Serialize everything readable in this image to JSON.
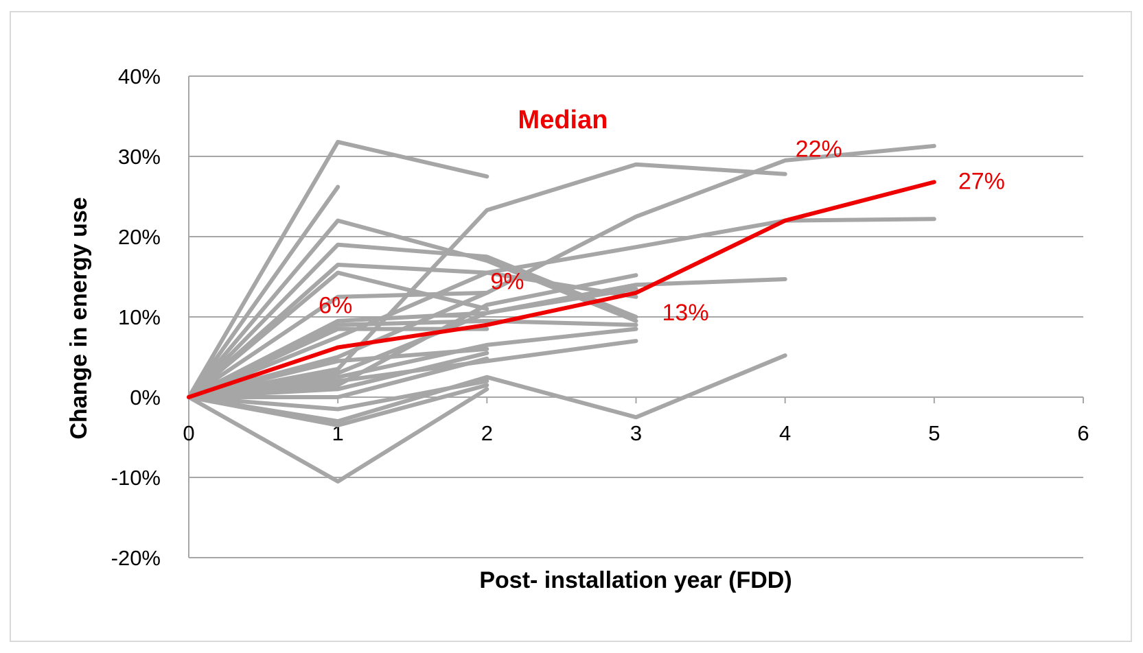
{
  "chart_data": {
    "type": "line",
    "title": "",
    "xlabel": "Post- installation year (FDD)",
    "ylabel": "Change in energy use",
    "xlim": [
      0,
      6
    ],
    "ylim": [
      -20,
      40
    ],
    "x_ticks": [
      "0",
      "1",
      "2",
      "3",
      "4",
      "5",
      "6"
    ],
    "y_ticks": [
      "40%",
      "30%",
      "20%",
      "10%",
      "0%",
      "-10%",
      "-20%"
    ],
    "grid": true,
    "colors": {
      "median": "#ee0000",
      "buildings": "#a6a6a6",
      "grid": "#a6a6a6",
      "annotation": "#e60000"
    },
    "median_legend": "Median",
    "median_series": {
      "name": "Median",
      "x": [
        0,
        1,
        2,
        3,
        4,
        5
      ],
      "values": [
        0,
        6.2,
        9.0,
        13.0,
        22.0,
        26.8
      ]
    },
    "median_annotations": [
      {
        "x": 1,
        "y": 6.2,
        "text": "6%"
      },
      {
        "x": 2,
        "y": 9.0,
        "text": "9%"
      },
      {
        "x": 3,
        "y": 13.0,
        "text": "13%"
      },
      {
        "x": 4,
        "y": 22.0,
        "text": "22%"
      },
      {
        "x": 5,
        "y": 26.8,
        "text": "27%"
      }
    ],
    "building_series": [
      {
        "x": [
          0,
          1,
          2
        ],
        "values": [
          0,
          31.8,
          27.5
        ]
      },
      {
        "x": [
          0,
          1
        ],
        "values": [
          0,
          26.2
        ]
      },
      {
        "x": [
          0,
          1,
          2,
          3
        ],
        "values": [
          0,
          22.0,
          17.0,
          9.5
        ]
      },
      {
        "x": [
          0,
          1,
          2,
          3
        ],
        "values": [
          0,
          19.0,
          17.5,
          10.0
        ]
      },
      {
        "x": [
          0,
          1,
          2,
          3
        ],
        "values": [
          0,
          16.5,
          15.5,
          12.5
        ]
      },
      {
        "x": [
          0,
          1,
          2
        ],
        "values": [
          0,
          15.5,
          11.0
        ]
      },
      {
        "x": [
          0,
          1,
          2
        ],
        "values": [
          0,
          12.5,
          13.0
        ]
      },
      {
        "x": [
          0,
          1,
          2,
          3
        ],
        "values": [
          0,
          9.5,
          10.5,
          13.5
        ]
      },
      {
        "x": [
          0,
          1,
          2
        ],
        "values": [
          0,
          8.5,
          8.5
        ]
      },
      {
        "x": [
          0,
          1,
          2,
          3,
          4,
          5
        ],
        "values": [
          0,
          7.5,
          15.5,
          18.7,
          22.0,
          22.2
        ]
      },
      {
        "x": [
          0,
          1,
          2,
          3,
          4,
          5
        ],
        "values": [
          0,
          5.0,
          13.0,
          22.5,
          29.5,
          31.3
        ]
      },
      {
        "x": [
          0,
          1,
          2,
          3,
          4
        ],
        "values": [
          0,
          3.5,
          23.3,
          29.0,
          27.8
        ]
      },
      {
        "x": [
          0,
          1,
          2,
          3,
          4
        ],
        "values": [
          0,
          3.0,
          10.5,
          14.0,
          14.7
        ]
      },
      {
        "x": [
          0,
          1,
          2,
          3
        ],
        "values": [
          0,
          2.5,
          6.5,
          8.5
        ]
      },
      {
        "x": [
          0,
          1,
          2,
          3
        ],
        "values": [
          0,
          2.0,
          4.5,
          7.0
        ]
      },
      {
        "x": [
          0,
          1,
          2,
          3
        ],
        "values": [
          0,
          1.5,
          11.5,
          15.2
        ]
      },
      {
        "x": [
          0,
          1,
          2
        ],
        "values": [
          0,
          1.0,
          5.5
        ]
      },
      {
        "x": [
          0,
          1,
          2
        ],
        "values": [
          0,
          0.0,
          4.8
        ]
      },
      {
        "x": [
          0,
          1,
          2
        ],
        "values": [
          0,
          -1.5,
          2.0
        ]
      },
      {
        "x": [
          0,
          1,
          2,
          3,
          4
        ],
        "values": [
          0,
          -3.0,
          2.5,
          -2.5,
          5.2
        ]
      },
      {
        "x": [
          0,
          1,
          2
        ],
        "values": [
          0,
          -3.5,
          1.5
        ]
      },
      {
        "x": [
          0,
          1,
          2
        ],
        "values": [
          0,
          -10.5,
          1.0
        ]
      },
      {
        "x": [
          0,
          1,
          2,
          3
        ],
        "values": [
          0,
          9.0,
          9.5,
          9.0
        ]
      },
      {
        "x": [
          0,
          1,
          2
        ],
        "values": [
          0,
          4.5,
          6.0
        ]
      }
    ]
  }
}
